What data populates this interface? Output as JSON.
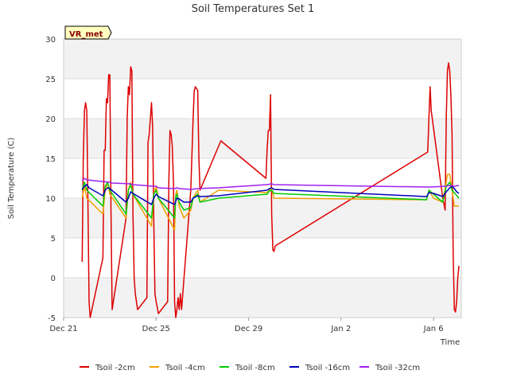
{
  "chart_data": {
    "type": "line",
    "title": "Soil Temperatures Set 1",
    "xlabel": "Time",
    "ylabel": "Soil Temperature (C)",
    "ylim": [
      -5,
      30
    ],
    "yticks": [
      -5,
      0,
      5,
      10,
      15,
      20,
      25,
      30
    ],
    "xlim": [
      0,
      17.2
    ],
    "xticks": [
      {
        "value": 0,
        "label": "Dec 21"
      },
      {
        "value": 4,
        "label": "Dec 25"
      },
      {
        "value": 8,
        "label": "Dec 29"
      },
      {
        "value": 12,
        "label": "Jan 2"
      },
      {
        "value": 16,
        "label": "Jan 6"
      }
    ],
    "grid": "horizontal bands",
    "legend_position": "bottom",
    "annotation": "VR_met",
    "x_units": "days since Dec 21",
    "series": [
      {
        "name": "Tsoil -2cm",
        "color": "#dd0000",
        "points": [
          [
            0.8,
            2
          ],
          [
            0.85,
            15
          ],
          [
            0.9,
            21
          ],
          [
            0.95,
            22
          ],
          [
            1.0,
            21
          ],
          [
            1.05,
            10
          ],
          [
            1.1,
            -3
          ],
          [
            1.15,
            -5
          ],
          [
            1.7,
            2.5
          ],
          [
            1.75,
            16
          ],
          [
            1.8,
            16
          ],
          [
            1.85,
            22.5
          ],
          [
            1.9,
            22
          ],
          [
            1.95,
            25.5
          ],
          [
            2.0,
            25.5
          ],
          [
            2.05,
            8
          ],
          [
            2.1,
            -4
          ],
          [
            2.7,
            7.5
          ],
          [
            2.75,
            20
          ],
          [
            2.8,
            24
          ],
          [
            2.85,
            23
          ],
          [
            2.9,
            26.5
          ],
          [
            2.95,
            26
          ],
          [
            3.0,
            8
          ],
          [
            3.05,
            0
          ],
          [
            3.1,
            -2
          ],
          [
            3.2,
            -4
          ],
          [
            3.6,
            -2.5
          ],
          [
            3.65,
            17
          ],
          [
            3.7,
            18
          ],
          [
            3.8,
            22
          ],
          [
            3.85,
            19
          ],
          [
            3.9,
            7
          ],
          [
            3.95,
            -2
          ],
          [
            4.0,
            -3
          ],
          [
            4.1,
            -4.5
          ],
          [
            4.5,
            -3
          ],
          [
            4.55,
            12
          ],
          [
            4.6,
            18.5
          ],
          [
            4.65,
            18
          ],
          [
            4.7,
            16.5
          ],
          [
            4.75,
            12
          ],
          [
            4.8,
            -3
          ],
          [
            4.85,
            -5
          ],
          [
            4.9,
            -4
          ],
          [
            4.95,
            -2.5
          ],
          [
            5.0,
            -4
          ],
          [
            5.05,
            -2
          ],
          [
            5.1,
            -4
          ],
          [
            5.5,
            11
          ],
          [
            5.6,
            20
          ],
          [
            5.65,
            23.5
          ],
          [
            5.7,
            24
          ],
          [
            5.8,
            23.5
          ],
          [
            5.85,
            15
          ],
          [
            5.9,
            11
          ],
          [
            6.8,
            17.2
          ],
          [
            8.75,
            12.5
          ],
          [
            8.8,
            16
          ],
          [
            8.85,
            18.5
          ],
          [
            8.9,
            18.5
          ],
          [
            8.95,
            23
          ],
          [
            9.0,
            8
          ],
          [
            9.05,
            3.5
          ],
          [
            9.1,
            3.3
          ],
          [
            9.15,
            4
          ],
          [
            15.75,
            15.8
          ],
          [
            15.8,
            20
          ],
          [
            15.85,
            24
          ],
          [
            15.9,
            21
          ],
          [
            16.4,
            10
          ],
          [
            16.5,
            8.5
          ],
          [
            16.55,
            20
          ],
          [
            16.6,
            26
          ],
          [
            16.65,
            27
          ],
          [
            16.7,
            26
          ],
          [
            16.75,
            23
          ],
          [
            16.8,
            18
          ],
          [
            16.85,
            3
          ],
          [
            16.9,
            -4
          ],
          [
            16.95,
            -4.3
          ],
          [
            17.0,
            -3
          ],
          [
            17.05,
            0
          ],
          [
            17.1,
            1.5
          ]
        ]
      },
      {
        "name": "Tsoil -4cm",
        "color": "#f0a000",
        "points": [
          [
            0.8,
            10
          ],
          [
            0.9,
            11.5
          ],
          [
            1.0,
            10
          ],
          [
            1.7,
            8
          ],
          [
            1.8,
            11
          ],
          [
            1.9,
            12
          ],
          [
            2.0,
            10.5
          ],
          [
            2.7,
            7.5
          ],
          [
            2.8,
            11
          ],
          [
            2.9,
            12
          ],
          [
            3.0,
            10.5
          ],
          [
            3.8,
            6.5
          ],
          [
            3.9,
            10.5
          ],
          [
            4.0,
            11.5
          ],
          [
            4.1,
            10
          ],
          [
            4.8,
            6
          ],
          [
            4.85,
            10.5
          ],
          [
            4.9,
            11
          ],
          [
            5.0,
            9
          ],
          [
            5.2,
            7.5
          ],
          [
            5.5,
            8.5
          ],
          [
            5.6,
            10
          ],
          [
            5.8,
            11
          ],
          [
            5.9,
            9.5
          ],
          [
            6.7,
            11
          ],
          [
            8.8,
            10.7
          ],
          [
            8.9,
            11
          ],
          [
            9.0,
            11.2
          ],
          [
            9.1,
            10
          ],
          [
            15.7,
            9.8
          ],
          [
            15.8,
            11
          ],
          [
            16.0,
            10
          ],
          [
            16.4,
            9.5
          ],
          [
            16.55,
            12
          ],
          [
            16.6,
            13
          ],
          [
            16.7,
            13
          ],
          [
            16.8,
            11
          ],
          [
            16.9,
            9
          ],
          [
            17.1,
            9
          ]
        ]
      },
      {
        "name": "Tsoil -8cm",
        "color": "#00cc00",
        "points": [
          [
            0.8,
            11
          ],
          [
            0.9,
            12
          ],
          [
            1.0,
            11
          ],
          [
            1.7,
            9
          ],
          [
            1.8,
            11.5
          ],
          [
            1.9,
            12
          ],
          [
            2.0,
            11
          ],
          [
            2.7,
            8
          ],
          [
            2.8,
            11
          ],
          [
            2.9,
            11.7
          ],
          [
            3.0,
            10.5
          ],
          [
            3.8,
            7.5
          ],
          [
            3.9,
            10.5
          ],
          [
            4.0,
            11
          ],
          [
            4.1,
            10
          ],
          [
            4.8,
            7.5
          ],
          [
            4.85,
            10.2
          ],
          [
            4.9,
            10.5
          ],
          [
            5.0,
            9.5
          ],
          [
            5.2,
            8.5
          ],
          [
            5.5,
            8.8
          ],
          [
            5.6,
            10
          ],
          [
            5.8,
            10.5
          ],
          [
            5.9,
            9.5
          ],
          [
            6.7,
            10
          ],
          [
            8.8,
            10.5
          ],
          [
            8.9,
            10.9
          ],
          [
            9.0,
            11
          ],
          [
            9.1,
            10.6
          ],
          [
            15.7,
            9.8
          ],
          [
            15.8,
            11
          ],
          [
            16.0,
            10.5
          ],
          [
            16.4,
            9.5
          ],
          [
            16.55,
            11.5
          ],
          [
            16.7,
            12
          ],
          [
            16.8,
            11
          ],
          [
            17.1,
            10
          ]
        ]
      },
      {
        "name": "Tsoil -16cm",
        "color": "#0000bb",
        "points": [
          [
            0.8,
            11.1
          ],
          [
            0.9,
            11.5
          ],
          [
            1.0,
            11.7
          ],
          [
            1.1,
            11.3
          ],
          [
            1.7,
            10.3
          ],
          [
            1.8,
            11
          ],
          [
            1.9,
            11.3
          ],
          [
            2.0,
            11.2
          ],
          [
            2.7,
            9.5
          ],
          [
            2.8,
            10
          ],
          [
            2.9,
            10.8
          ],
          [
            3.0,
            10.6
          ],
          [
            3.8,
            9.2
          ],
          [
            3.9,
            10
          ],
          [
            4.0,
            10.5
          ],
          [
            4.1,
            10.2
          ],
          [
            4.8,
            9.2
          ],
          [
            4.85,
            9.6
          ],
          [
            4.9,
            10
          ],
          [
            5.0,
            9.9
          ],
          [
            5.2,
            9.5
          ],
          [
            5.5,
            9.5
          ],
          [
            5.6,
            10
          ],
          [
            5.8,
            10.3
          ],
          [
            5.9,
            10.2
          ],
          [
            6.7,
            10.3
          ],
          [
            8.8,
            11
          ],
          [
            8.9,
            11.2
          ],
          [
            9.0,
            11.3
          ],
          [
            9.1,
            11.1
          ],
          [
            15.7,
            10.2
          ],
          [
            15.8,
            10.7
          ],
          [
            16.0,
            10.6
          ],
          [
            16.4,
            10.2
          ],
          [
            16.55,
            10.8
          ],
          [
            16.7,
            11.3
          ],
          [
            16.8,
            11.5
          ],
          [
            16.9,
            11.2
          ],
          [
            17.0,
            10.8
          ],
          [
            17.1,
            10.6
          ]
        ]
      },
      {
        "name": "Tsoil -32cm",
        "color": "#a020f0",
        "points": [
          [
            0.8,
            12.2
          ],
          [
            0.9,
            12.5
          ],
          [
            1.0,
            12.3
          ],
          [
            2.0,
            12
          ],
          [
            2.1,
            11.9
          ],
          [
            2.9,
            11.8
          ],
          [
            3.0,
            11.7
          ],
          [
            3.9,
            11.5
          ],
          [
            4.0,
            11.5
          ],
          [
            4.1,
            11.3
          ],
          [
            4.8,
            11.2
          ],
          [
            4.9,
            11.3
          ],
          [
            5.0,
            11.2
          ],
          [
            5.5,
            11.1
          ],
          [
            5.8,
            11.2
          ],
          [
            6.7,
            11.3
          ],
          [
            8.8,
            11.7
          ],
          [
            9.0,
            11.8
          ],
          [
            9.1,
            11.7
          ],
          [
            15.7,
            11.4
          ],
          [
            15.9,
            11.4
          ],
          [
            16.5,
            11.5
          ],
          [
            16.7,
            11.6
          ],
          [
            16.9,
            11.5
          ],
          [
            17.1,
            11.6
          ]
        ]
      }
    ]
  }
}
